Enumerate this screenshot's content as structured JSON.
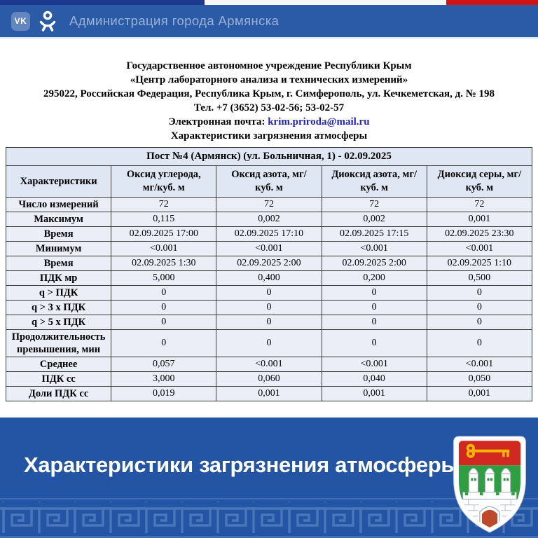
{
  "topbar": {
    "title": "Администрация города Армянска",
    "vk_label": "VK"
  },
  "letterhead": {
    "org_name": "Государственное автономное учреждение Республики Крым",
    "org_name2": "«Центр лабораторного анализа и технических измерений»",
    "address": "295022, Российская Федерация, Республика Крым, г. Симферополь, ул. Кечкеметская, д. № 198",
    "phone": "Тел. +7 (3652) 53-02-56; 53-02-57",
    "email_label": "Электронная почта:",
    "email": "krim.priroda@mail.ru",
    "doc_title": "Характеристики загрязнения атмосферы"
  },
  "table": {
    "title": "Пост №4 (Армянск) (ул. Больничная, 1) - 02.09.2025",
    "columns": [
      "Характеристики",
      "Оксид углерода, мг/куб. м",
      "Оксид азота, мг/куб. м",
      "Диоксид азота, мг/куб. м",
      "Диоксид серы, мг/куб. м"
    ],
    "rows": [
      {
        "label": "Число измерений",
        "values": [
          "72",
          "72",
          "72",
          "72"
        ]
      },
      {
        "label": "Максимум",
        "values": [
          "0,115",
          "0,002",
          "0,002",
          "0,001"
        ]
      },
      {
        "label": "Время",
        "values": [
          "02.09.2025 17:00",
          "02.09.2025 17:10",
          "02.09.2025 17:15",
          "02.09.2025 23:30"
        ]
      },
      {
        "label": "Минимум",
        "values": [
          "<0.001",
          "<0.001",
          "<0.001",
          "<0.001"
        ]
      },
      {
        "label": "Время",
        "values": [
          "02.09.2025 1:30",
          "02.09.2025 2:00",
          "02.09.2025 2:00",
          "02.09.2025 1:10"
        ]
      },
      {
        "label": "ПДК мр",
        "values": [
          "5,000",
          "0,400",
          "0,200",
          "0,500"
        ]
      },
      {
        "label": "q > ПДК",
        "values": [
          "0",
          "0",
          "0",
          "0"
        ]
      },
      {
        "label": "q > 3 x ПДК",
        "values": [
          "0",
          "0",
          "0",
          "0"
        ]
      },
      {
        "label": "q > 5 x ПДК",
        "values": [
          "0",
          "0",
          "0",
          "0"
        ]
      },
      {
        "label": "Продолжительность превышения, мин",
        "values": [
          "0",
          "0",
          "0",
          "0"
        ]
      },
      {
        "label": "Среднее",
        "values": [
          "0,057",
          "<0.001",
          "<0.001",
          "<0.001"
        ]
      },
      {
        "label": "ПДК сс",
        "values": [
          "3,000",
          "0,060",
          "0,040",
          "0,050"
        ]
      },
      {
        "label": "Доли ПДК сс",
        "values": [
          "0,019",
          "0,001",
          "0,001",
          "0,001"
        ]
      }
    ]
  },
  "banner": {
    "title": "Характеристики загрязнения атмосферы",
    "emblem": "coat-of-arms-of-armyansk"
  },
  "colors": {
    "topbar_bg": "#2b5aa7",
    "banner_bg": "#2355a4",
    "meander": "#4a77ba",
    "table_cell_bg": "#eaeef7",
    "table_header_bg": "#dfe7f3",
    "table_border": "#3a3a3a",
    "email_link": "#2222c0",
    "flag_navy": "#1d3b8e",
    "flag_red": "#d01317",
    "emblem_red": "#d1281f",
    "emblem_green": "#2f9e41",
    "emblem_gold": "#f2b705"
  }
}
